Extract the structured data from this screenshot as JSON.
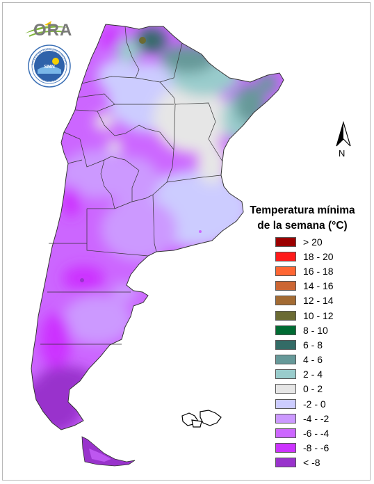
{
  "logo": {
    "text": "ORA"
  },
  "seal": {
    "ring_text_top": "SERVICIO METEOROLÓGICO NACIONAL",
    "ring_text_bottom": "ARGENTINA",
    "center_text": "SMN"
  },
  "north_arrow": {
    "label": "N"
  },
  "legend": {
    "title_line1": "Temperatura mínima",
    "title_line2": "de la semana (°C)",
    "items": [
      {
        "label": "> 20",
        "color": "#9b0000"
      },
      {
        "label": "18 - 20",
        "color": "#ff1a1a"
      },
      {
        "label": "16 - 18",
        "color": "#ff6633"
      },
      {
        "label": "14 - 16",
        "color": "#cc6633"
      },
      {
        "label": "12 - 14",
        "color": "#a36b33"
      },
      {
        "label": "10 - 12",
        "color": "#6b6b33"
      },
      {
        "label": "8 - 10",
        "color": "#006b33"
      },
      {
        "label": "6 - 8",
        "color": "#336b66"
      },
      {
        "label": "4 - 6",
        "color": "#669999"
      },
      {
        "label": "2 - 4",
        "color": "#99cccc"
      },
      {
        "label": "0 - 2",
        "color": "#e6e6e6"
      },
      {
        "label": "-2 - 0",
        "color": "#ccccff"
      },
      {
        "label": "-4 - -2",
        "color": "#cc99ff"
      },
      {
        "label": "-6 - -4",
        "color": "#cc66ff"
      },
      {
        "label": "-8 - -6",
        "color": "#cc33ff"
      },
      {
        "label": "< -8",
        "color": "#9933cc"
      }
    ]
  }
}
